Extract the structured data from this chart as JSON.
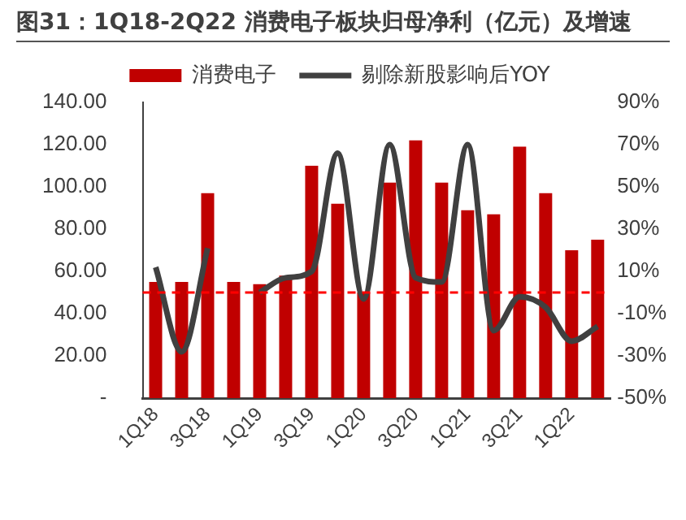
{
  "chart_data": {
    "type": "bar",
    "title": "图31：1Q18-2Q22 消费电子板块归母净利（亿元）及增速",
    "categories": [
      "1Q18",
      null,
      "3Q18",
      null,
      "1Q19",
      null,
      "3Q19",
      null,
      "1Q20",
      null,
      "3Q20",
      null,
      "1Q21",
      null,
      "3Q21",
      null,
      "1Q22",
      null
    ],
    "series": [
      {
        "name": "消费电子",
        "color": "#c00000",
        "values": [
          55,
          55,
          97,
          55,
          54,
          58,
          110,
          92,
          50,
          102,
          122,
          102,
          89,
          87,
          119,
          97,
          70,
          75
        ]
      },
      {
        "name": "剔除新股影响后YOY",
        "type": "line",
        "axis": "y2",
        "color": "#404040",
        "values": [
          12,
          -28,
          21,
          null,
          0,
          7,
          10,
          66,
          -3,
          70,
          7,
          5,
          70,
          -18,
          -2,
          -7,
          -23,
          -16
        ]
      }
    ],
    "ylim": [
      0,
      140
    ],
    "yticks": [
      {
        "value": 0,
        "label": "-"
      },
      {
        "value": 20,
        "label": "20.00"
      },
      {
        "value": 40,
        "label": "40.00"
      },
      {
        "value": 60,
        "label": "60.00"
      },
      {
        "value": 80,
        "label": "80.00"
      },
      {
        "value": 100,
        "label": "100.00"
      },
      {
        "value": 120,
        "label": "120.00"
      },
      {
        "value": 140,
        "label": "140.00"
      }
    ],
    "y2lim": [
      -50,
      90
    ],
    "y2ticks": [
      {
        "value": -50,
        "label": "-50%"
      },
      {
        "value": -30,
        "label": "-30%"
      },
      {
        "value": -10,
        "label": "-10%"
      },
      {
        "value": 10,
        "label": "10%"
      },
      {
        "value": 30,
        "label": "30%"
      },
      {
        "value": 50,
        "label": "50%"
      },
      {
        "value": 70,
        "label": "70%"
      },
      {
        "value": 90,
        "label": "90%"
      }
    ],
    "ref_lines": [
      {
        "axis": "y2",
        "value": 0,
        "color": "#ff0000",
        "line_style": "dashed"
      }
    ],
    "grid": false,
    "legend": "top",
    "marker": "none"
  }
}
